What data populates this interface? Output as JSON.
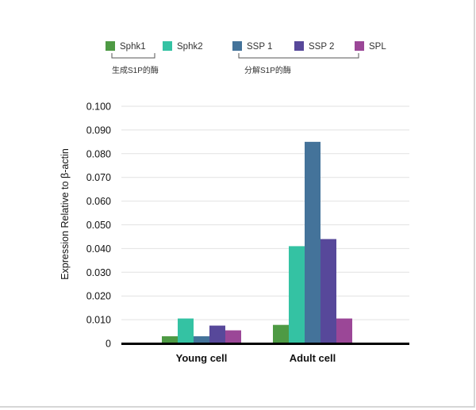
{
  "legend_groups": [
    {
      "label": "生成S1P的酶"
    },
    {
      "label": "分解S1P的酶"
    }
  ],
  "chart_data": {
    "type": "bar",
    "categories": [
      "Young cell",
      "Adult cell"
    ],
    "series": [
      {
        "name": "Sphk1",
        "color": "#4e9a44",
        "values": [
          0.003,
          0.0078
        ]
      },
      {
        "name": "Sphk2",
        "color": "#34c2a3",
        "values": [
          0.0105,
          0.041
        ]
      },
      {
        "name": "SSP 1",
        "color": "#44739a",
        "values": [
          0.003,
          0.085
        ]
      },
      {
        "name": "SSP 2",
        "color": "#57489a",
        "values": [
          0.0075,
          0.044
        ]
      },
      {
        "name": "SPL",
        "color": "#9b4797",
        "values": [
          0.0055,
          0.0105
        ]
      }
    ],
    "ylabel": "Expression Relative to β-actin",
    "xlabel": "",
    "ylim": [
      0,
      0.1
    ],
    "yticks": [
      "0",
      "0.010",
      "0.020",
      "0.030",
      "0.040",
      "0.050",
      "0.060",
      "0.070",
      "0.080",
      "0.090",
      "0.100"
    ],
    "grid": true,
    "legend_position": "top"
  }
}
